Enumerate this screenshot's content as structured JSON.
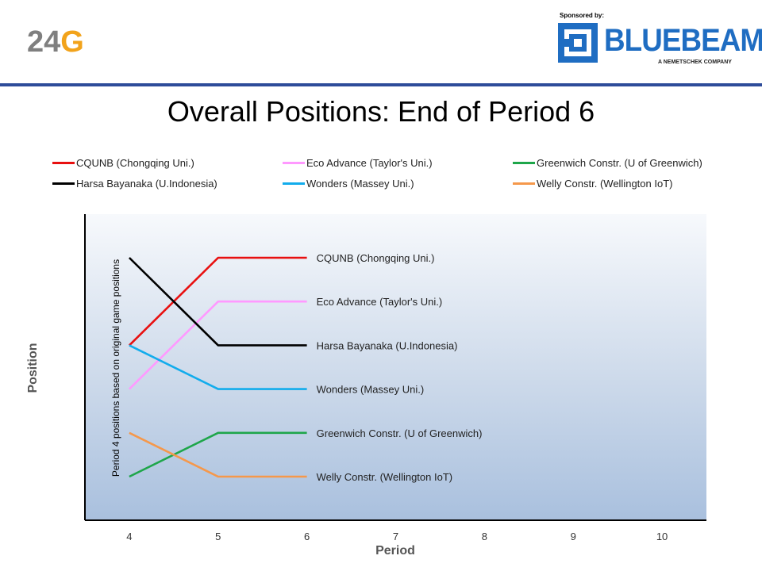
{
  "header": {
    "logo_24g_number": "24",
    "logo_24g_letter": "G",
    "sponsor_label": "Sponsored by:",
    "sponsor_name": "BLUEBEAM",
    "sponsor_subtitle": "A NEMETSCHEK COMPANY",
    "rule_color": "#2e4c9a"
  },
  "chart_data": {
    "type": "line",
    "title": "Overall Positions: End of Period 6",
    "xlabel": "Period",
    "ylabel": "Position",
    "annotation": "Period 4 positions based on original game positions",
    "x_ticks": [
      4,
      5,
      6,
      7,
      8,
      9,
      10
    ],
    "xlim": [
      3.5,
      10.5
    ],
    "y_rank_range": [
      1,
      6
    ],
    "y_inverted": true,
    "grid": false,
    "legend_position": "top",
    "series": [
      {
        "name": "CQUNB (Chongqing Uni.)",
        "color": "#e81010",
        "x": [
          4,
          5,
          6
        ],
        "y": [
          3,
          1,
          1
        ],
        "end_label": "CQUNB (Chongqing Uni.)"
      },
      {
        "name": "Eco Advance (Taylor's Uni.)",
        "color": "#ff99ff",
        "x": [
          4,
          5,
          6
        ],
        "y": [
          4,
          2,
          2
        ],
        "end_label": "Eco Advance (Taylor's Uni.)"
      },
      {
        "name": "Greenwich Constr. (U of Greenwich)",
        "color": "#1ea64a",
        "x": [
          4,
          5,
          6
        ],
        "y": [
          6,
          5,
          5
        ],
        "end_label": "Greenwich Constr. (U of Greenwich)"
      },
      {
        "name": "Harsa Bayanaka (U.Indonesia)",
        "color": "#000000",
        "x": [
          4,
          5,
          6
        ],
        "y": [
          1,
          3,
          3
        ],
        "end_label": "Harsa Bayanaka (U.Indonesia)"
      },
      {
        "name": "Wonders (Massey Uni.)",
        "color": "#12acec",
        "x": [
          4,
          5,
          6
        ],
        "y": [
          3,
          4,
          4
        ],
        "end_label": "Wonders  (Massey Uni.)"
      },
      {
        "name": "Welly Constr. (Wellington IoT)",
        "color": "#f5984b",
        "x": [
          4,
          5,
          6
        ],
        "y": [
          5,
          6,
          6
        ],
        "end_label": "Welly Constr. (Wellington IoT)"
      }
    ]
  }
}
